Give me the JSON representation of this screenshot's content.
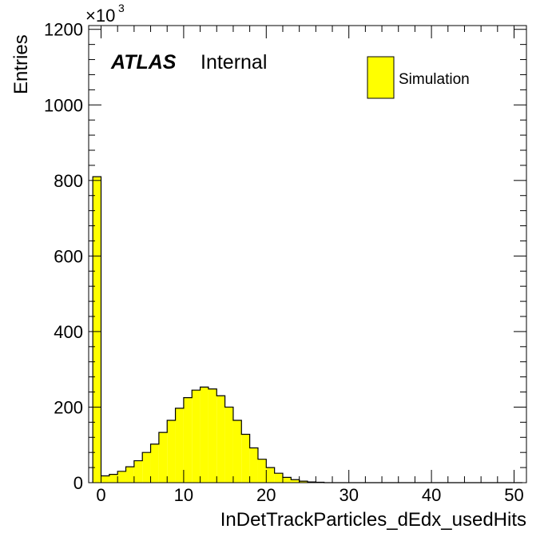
{
  "chart_data": {
    "type": "bar",
    "histogram": true,
    "xlabel": "InDetTrackParticles_dEdx_usedHits",
    "ylabel": "Entries",
    "y_multiplier": "×10",
    "y_multiplier_exp": "3",
    "xlim": [
      -1.5,
      51.5
    ],
    "ylim": [
      0,
      1210
    ],
    "bin_width": 1,
    "bin_starts": [
      -1,
      0,
      1,
      2,
      3,
      4,
      5,
      6,
      7,
      8,
      9,
      10,
      11,
      12,
      13,
      14,
      15,
      16,
      17,
      18,
      19,
      20,
      21,
      22,
      23,
      24,
      25,
      26,
      27,
      28,
      29,
      30,
      31,
      32,
      33,
      34,
      35,
      36,
      37,
      38,
      39,
      40,
      41,
      42,
      43,
      44,
      45,
      46,
      47,
      48,
      49,
      50
    ],
    "values": [
      810,
      18,
      22,
      30,
      42,
      58,
      80,
      102,
      133,
      165,
      197,
      225,
      245,
      253,
      248,
      230,
      200,
      165,
      128,
      92,
      62,
      40,
      25,
      14,
      8,
      4,
      2,
      1,
      0,
      0,
      0,
      0,
      0,
      0,
      0,
      0,
      0,
      0,
      0,
      0,
      0,
      0,
      0,
      0,
      0,
      0,
      0,
      0,
      0,
      0,
      0,
      0
    ],
    "x_major_ticks": [
      0,
      10,
      20,
      30,
      40,
      50
    ],
    "x_tick_labels": [
      "0",
      "10",
      "20",
      "30",
      "40",
      "50"
    ],
    "y_major_ticks": [
      0,
      200,
      400,
      600,
      800,
      1000,
      1200
    ],
    "y_tick_labels": [
      "0",
      "200",
      "400",
      "600",
      "800",
      "1000",
      "1200"
    ],
    "fill_color": "#ffff00",
    "line_color": "#000000",
    "grid": false,
    "legend_position": "top-right",
    "legend": [
      {
        "label": "Simulation",
        "color": "#ffff00"
      }
    ],
    "annotation": {
      "bold": "ATLAS",
      "text": "Internal"
    }
  }
}
